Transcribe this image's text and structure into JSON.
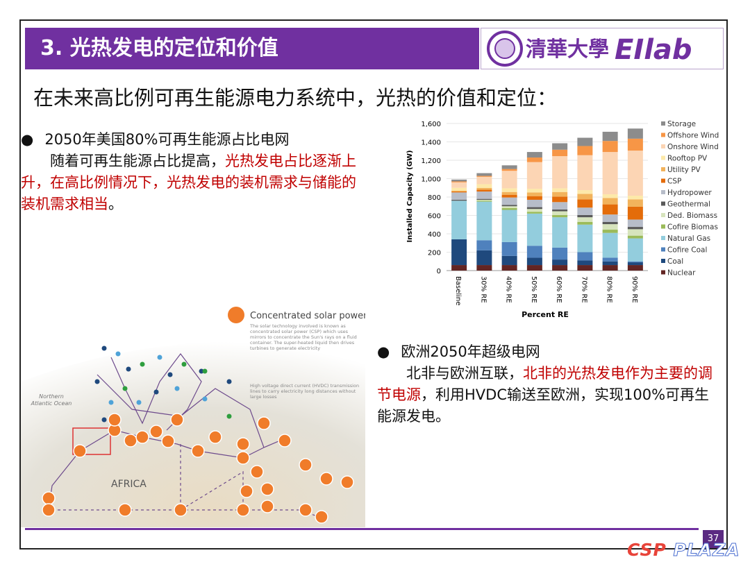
{
  "header": {
    "title": "3. 光热发电的定位和价值",
    "logo_text": "清華大學",
    "lab_name": "EIlab"
  },
  "subtitle": "在未来高比例可再生能源电力系统中，光热的价值和定位：",
  "bullets": [
    {
      "heading": "2050年美国80%可再生能源占比电网",
      "segments": [
        {
          "text": "随着可再生能源占比提高，",
          "color": "#111111"
        },
        {
          "text": "光热发电占比逐渐上升，在高比例情况下，光热发电的装机需求与储能的装机需求相当",
          "color": "#c00000"
        },
        {
          "text": "。",
          "color": "#111111"
        }
      ]
    },
    {
      "heading": "欧洲2050年超级电网",
      "segments": [
        {
          "text": "北非与欧洲互联，",
          "color": "#111111"
        },
        {
          "text": "北非的光热发电作为主要的调节电源",
          "color": "#c00000"
        },
        {
          "text": "，利用HVDC输送至欧洲，实现100%可再生能源发电。",
          "color": "#111111"
        }
      ]
    }
  ],
  "map": {
    "legend_title": "Concentrated solar power",
    "legend_note": "The solar technology involved is known as concentrated solar power (CSP) which uses mirrors to concentrate the Sun's rays on a fluid container. The super-heated liquid then drives turbines to generate electricity",
    "hvdc_note": "High voltage direct current (HVDC) transmission lines to carry electricity long distances without large losses",
    "ocean_label": "Northern Atlantic Ocean",
    "continent_label": "AFRICA"
  },
  "chart_data": {
    "type": "stacked-bar",
    "y_label": "Installed Capacity (GW)",
    "x_label": "Percent RE",
    "categories": [
      "Baseline",
      "30% RE",
      "40% RE",
      "50% RE",
      "60% RE",
      "70% RE",
      "80% RE",
      "90% RE"
    ],
    "ylim": [
      0,
      1600
    ],
    "yticks": [
      0,
      200,
      400,
      600,
      800,
      {
        "value": 1000,
        "label": "1,000"
      },
      {
        "value": 1200,
        "label": "1,200"
      },
      {
        "value": 1400,
        "label": "1,400"
      },
      {
        "value": 1600,
        "label": "1,600"
      }
    ],
    "grid": true,
    "series": [
      {
        "name": "Nuclear",
        "color": "#632523",
        "values": [
          60,
          60,
          60,
          60,
          60,
          60,
          60,
          60
        ]
      },
      {
        "name": "Coal",
        "color": "#1f497d",
        "values": [
          280,
          160,
          100,
          80,
          60,
          50,
          40,
          30
        ]
      },
      {
        "name": "Cofire Coal",
        "color": "#4f81bd",
        "values": [
          0,
          110,
          150,
          130,
          130,
          90,
          40,
          10
        ]
      },
      {
        "name": "Natural Gas",
        "color": "#93cddd",
        "values": [
          420,
          420,
          350,
          350,
          330,
          300,
          270,
          250
        ]
      },
      {
        "name": "Cofire Biomas",
        "color": "#9bbb59",
        "values": [
          0,
          10,
          20,
          20,
          25,
          30,
          35,
          30
        ]
      },
      {
        "name": "Ded. Biomass",
        "color": "#d7e4bd",
        "values": [
          0,
          10,
          20,
          30,
          40,
          50,
          60,
          70
        ]
      },
      {
        "name": "Geothermal",
        "color": "#595959",
        "values": [
          10,
          10,
          15,
          20,
          20,
          25,
          25,
          25
        ]
      },
      {
        "name": "Hydropower",
        "color": "#b7bdc9",
        "values": [
          80,
          80,
          80,
          80,
          80,
          80,
          80,
          80
        ]
      },
      {
        "name": "CSP",
        "color": "#e46c0a",
        "values": [
          10,
          20,
          30,
          40,
          60,
          90,
          110,
          140
        ]
      },
      {
        "name": "Utility PV",
        "color": "#f2b35c",
        "values": [
          10,
          20,
          30,
          40,
          50,
          60,
          70,
          80
        ]
      },
      {
        "name": "Rooftop PV",
        "color": "#fde9a9",
        "values": [
          30,
          40,
          40,
          40,
          40,
          40,
          40,
          40
        ]
      },
      {
        "name": "Onshore Wind",
        "color": "#fcd5b4",
        "values": [
          60,
          80,
          190,
          290,
          350,
          380,
          460,
          490
        ]
      },
      {
        "name": "Offshore Wind",
        "color": "#f79646",
        "values": [
          10,
          10,
          20,
          50,
          70,
          100,
          120,
          130
        ]
      },
      {
        "name": "Storage",
        "color": "#8c8c8c",
        "values": [
          20,
          30,
          40,
          60,
          70,
          90,
          100,
          110
        ]
      }
    ]
  },
  "page_number": 37,
  "watermark": {
    "first": "CSP",
    "second": "PLAZA"
  }
}
